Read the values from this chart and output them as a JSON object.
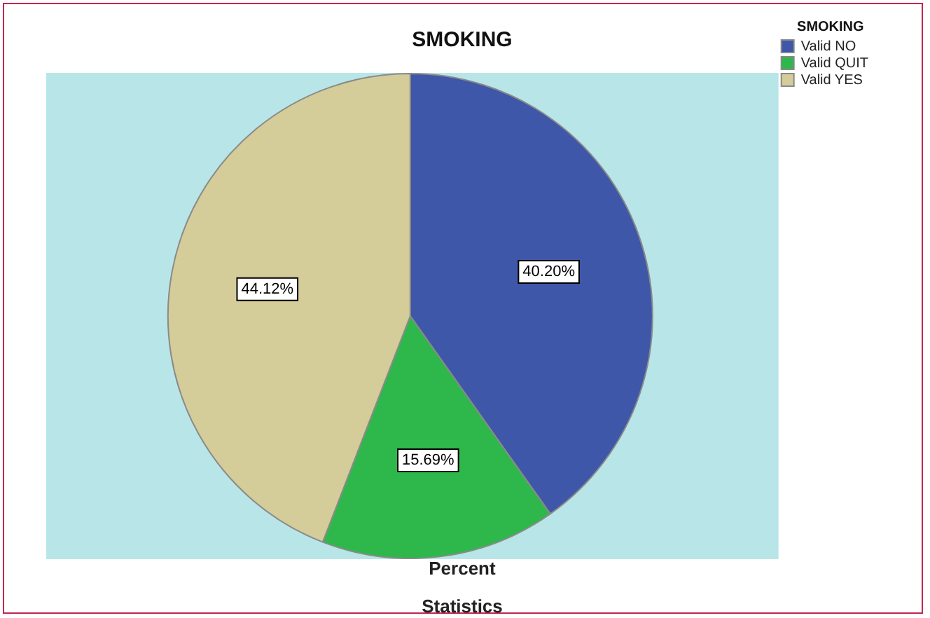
{
  "chart_data": {
    "type": "pie",
    "title": "SMOKING",
    "xlabel": "Percent",
    "legend_title": "SMOKING",
    "legend": "top right",
    "categories": [
      "Valid NO",
      "Valid QUIT",
      "Valid YES"
    ],
    "values": [
      40.2,
      15.69,
      44.12
    ],
    "colors": [
      "#3f57a9",
      "#2eb84b",
      "#d4cc99"
    ],
    "value_labels": [
      "40.20%",
      "15.69%",
      "44.12%"
    ],
    "annotations": [
      "Statistics"
    ]
  }
}
